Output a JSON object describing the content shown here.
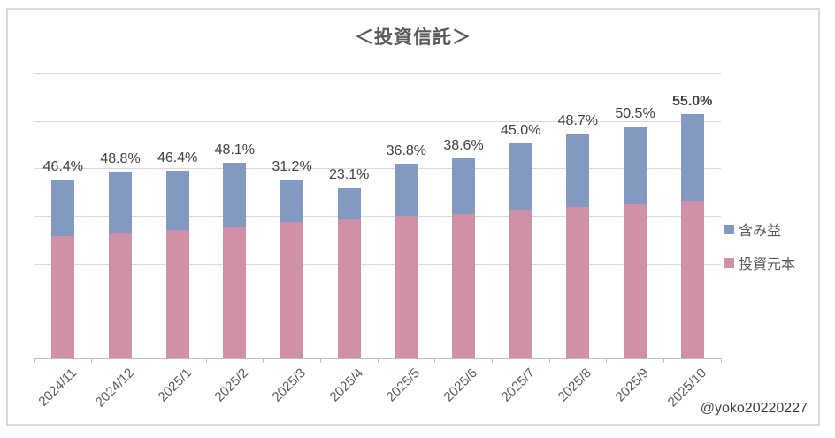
{
  "chart_data": {
    "type": "bar",
    "subtype": "stacked",
    "title": "＜投資信託＞",
    "categories": [
      "2024/11",
      "2024/12",
      "2025/1",
      "2025/2",
      "2025/3",
      "2025/4",
      "2025/5",
      "2025/6",
      "2025/7",
      "2025/8",
      "2025/9",
      "2025/10"
    ],
    "series": [
      {
        "name": "含み益",
        "role": "gain",
        "color": "#8299c2",
        "values_pct_of_plot_height": [
          19.9,
          21.5,
          20.9,
          22.3,
          14.9,
          11.2,
          18.4,
          19.6,
          23.4,
          25.9,
          27.3,
          30.4
        ]
      },
      {
        "name": "投資元本",
        "role": "principal",
        "color": "#d090a8",
        "values_pct_of_plot_height": [
          42.8,
          44.0,
          45.0,
          46.4,
          47.7,
          48.7,
          50.0,
          50.7,
          52.1,
          53.1,
          54.1,
          55.2
        ]
      }
    ],
    "bar_labels": [
      "46.4%",
      "48.8%",
      "46.4%",
      "48.1%",
      "31.2%",
      "23.1%",
      "36.8%",
      "38.6%",
      "45.0%",
      "48.7%",
      "50.5%",
      "55.0%"
    ],
    "bar_labels_bold": [
      false,
      false,
      false,
      false,
      false,
      false,
      false,
      false,
      false,
      false,
      false,
      true
    ],
    "legend": {
      "position": "right",
      "entries": [
        "含み益",
        "投資元本"
      ]
    },
    "axes": {
      "x_tick_label_rotation_deg": -45,
      "y_tick_labels": "none",
      "horizontal_gridline_count": 7,
      "grid_on": true
    },
    "watermark": "@yoko20220227",
    "colors": {
      "gain": "#8299c2",
      "principal": "#d090a8",
      "gridline": "#d9d9d9",
      "axis_line": "#bfbfbf",
      "frame_border": "#d9d9d9",
      "title_text": "#595959",
      "bar_label_text": "#404040",
      "axis_text": "#595959"
    }
  }
}
